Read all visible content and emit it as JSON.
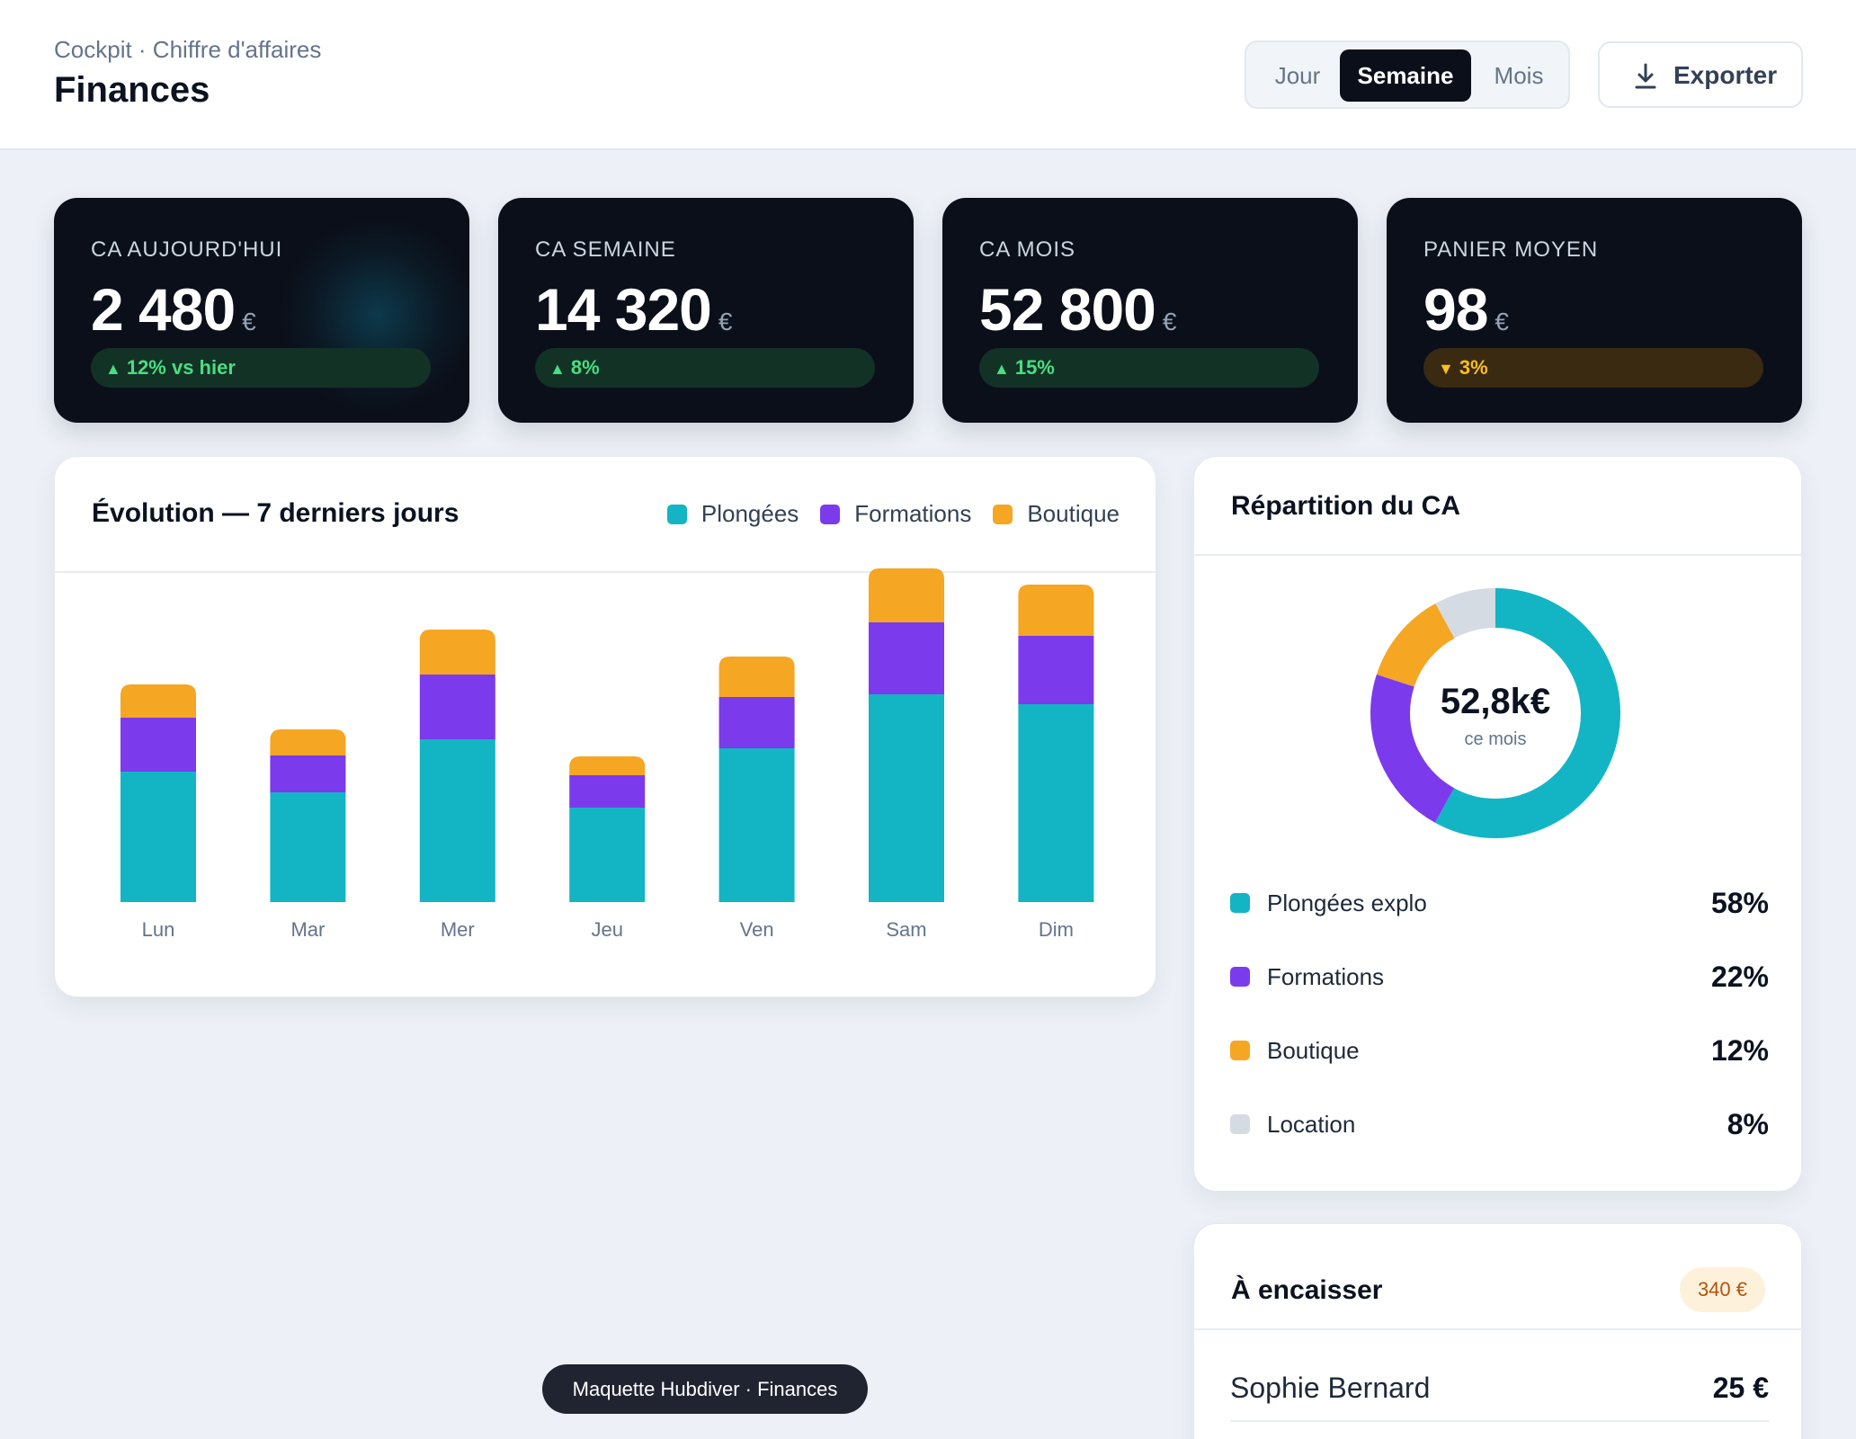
{
  "header": {
    "breadcrumb": "Cockpit · Chiffre d'affaires",
    "title": "Finances",
    "period_tabs": [
      {
        "label": "Jour",
        "active": false
      },
      {
        "label": "Semaine",
        "active": true
      },
      {
        "label": "Mois",
        "active": false
      }
    ],
    "export_label": "Exporter",
    "export_icon": "download-icon"
  },
  "kpis": [
    {
      "label": "CA AUJOURD'HUI",
      "value": "2 480",
      "unit": "€",
      "delta": "12% vs hier",
      "trend": "up"
    },
    {
      "label": "CA SEMAINE",
      "value": "14 320",
      "unit": "€",
      "delta": "8%",
      "trend": "up"
    },
    {
      "label": "CA MOIS",
      "value": "52 800",
      "unit": "€",
      "delta": "15%",
      "trend": "up"
    },
    {
      "label": "PANIER MOYEN",
      "value": "98",
      "unit": "€",
      "delta": "3%",
      "trend": "down"
    }
  ],
  "evolution": {
    "title": "Évolution — 7 derniers jours",
    "legend": [
      "Plongées",
      "Formations",
      "Boutique"
    ]
  },
  "chart_data": {
    "type": "bar",
    "stacked": true,
    "title": "Évolution — 7 derniers jours",
    "categories": [
      "Lun",
      "Mar",
      "Mer",
      "Jeu",
      "Ven",
      "Sam",
      "Dim"
    ],
    "series": [
      {
        "name": "Plongées",
        "color": "#13b5c5",
        "values": [
          1450,
          1220,
          1810,
          1050,
          1710,
          2310,
          2200
        ]
      },
      {
        "name": "Formations",
        "color": "#7c3aed",
        "values": [
          600,
          410,
          720,
          360,
          570,
          800,
          760
        ]
      },
      {
        "name": "Boutique",
        "color": "#f5a623",
        "values": [
          370,
          290,
          500,
          210,
          450,
          600,
          570
        ]
      }
    ],
    "ylim": [
      0,
      3700
    ],
    "grid": false,
    "legend_position": "top-right"
  },
  "split": {
    "title": "Répartition du CA",
    "center_value": "52,8k€",
    "center_sub": "ce mois",
    "items": [
      {
        "name": "Plongées explo",
        "pct": "58%",
        "value": 58,
        "color": "#13b5c5"
      },
      {
        "name": "Formations",
        "pct": "22%",
        "value": 22,
        "color": "#7c3aed"
      },
      {
        "name": "Boutique",
        "pct": "12%",
        "value": 12,
        "color": "#f5a623"
      },
      {
        "name": "Location",
        "pct": "8%",
        "value": 8,
        "color": "#d5dbe3"
      }
    ]
  },
  "collect": {
    "title": "À encaisser",
    "badge": "340 €",
    "rows": [
      {
        "name": "Sophie Bernard",
        "amount": "25 €"
      }
    ]
  },
  "footer": {
    "label": "Maquette Hubdiver · Finances"
  }
}
